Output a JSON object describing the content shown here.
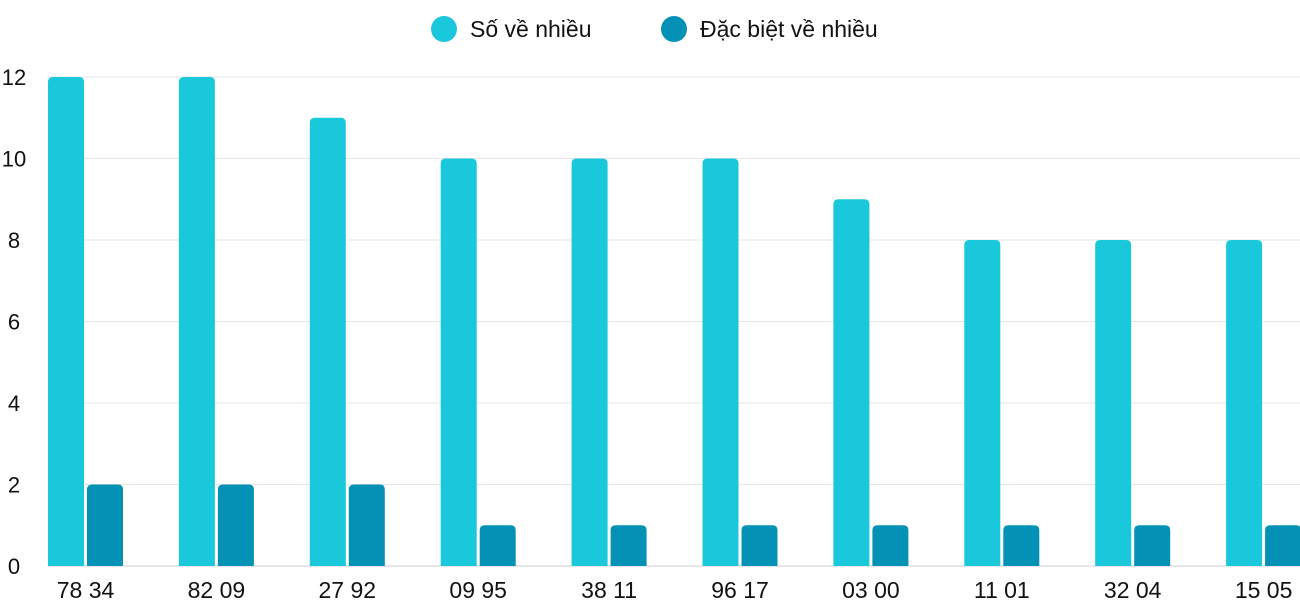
{
  "chart_data": {
    "type": "bar",
    "title": "",
    "xlabel": "",
    "ylabel": "",
    "ylim": [
      0,
      12
    ],
    "yticks": [
      0,
      2,
      4,
      6,
      8,
      10,
      12
    ],
    "grid": true,
    "legend_position": "top",
    "categories": [
      "78 34",
      "82 09",
      "27 92",
      "09 95",
      "38 11",
      "96 17",
      "03 00",
      "11 01",
      "32 04",
      "15 05"
    ],
    "series": [
      {
        "name": "Số về nhiều",
        "color": "#1AC8DB",
        "values": [
          12,
          12,
          11,
          10,
          10,
          10,
          9,
          8,
          8,
          8
        ]
      },
      {
        "name": "Đặc biệt về nhiều",
        "color": "#0392B5",
        "values": [
          2,
          2,
          2,
          1,
          1,
          1,
          1,
          1,
          1,
          1
        ]
      }
    ]
  }
}
